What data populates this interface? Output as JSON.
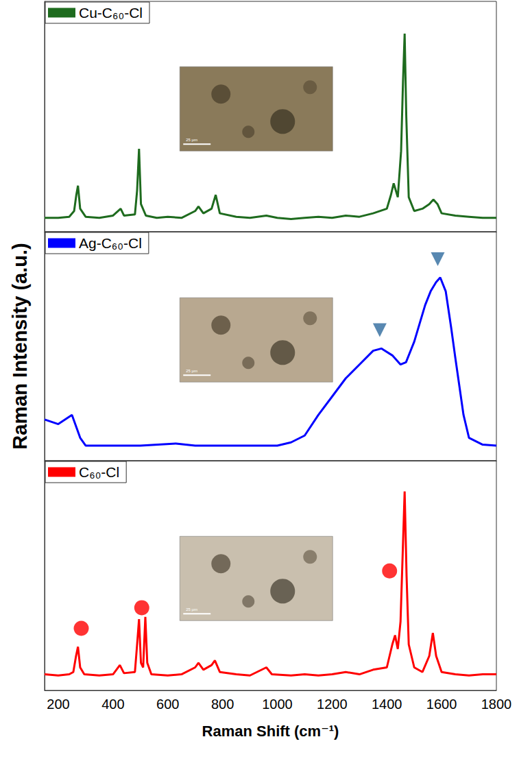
{
  "chart_data": {
    "type": "line",
    "x_label": "Raman Shift (cm⁻¹)",
    "y_label": "Raman Intensity (a.u.)",
    "xlim": [
      150,
      1800
    ],
    "xticks": [
      200,
      400,
      600,
      800,
      1000,
      1200,
      1400,
      1600,
      1800
    ],
    "ylim": [
      0,
      1
    ],
    "tick_labels": "x",
    "grid": false,
    "panels": [
      {
        "name": "Cu-C₆₀-Cl",
        "color": "#1e6b1e",
        "line_style": "solid",
        "x": [
          150,
          200,
          240,
          258,
          266,
          272,
          280,
          300,
          350,
          400,
          428,
          440,
          480,
          488,
          495,
          502,
          520,
          560,
          600,
          650,
          700,
          712,
          730,
          760,
          775,
          790,
          850,
          900,
          960,
          1000,
          1050,
          1100,
          1150,
          1200,
          1250,
          1300,
          1350,
          1400,
          1415,
          1425,
          1440,
          1452,
          1459,
          1465,
          1471,
          1480,
          1500,
          1530,
          1555,
          1570,
          1585,
          1600,
          1650,
          1700,
          1750,
          1800
        ],
        "values": [
          0.06,
          0.06,
          0.065,
          0.09,
          0.16,
          0.2,
          0.1,
          0.065,
          0.06,
          0.07,
          0.1,
          0.07,
          0.075,
          0.18,
          0.36,
          0.12,
          0.07,
          0.06,
          0.065,
          0.06,
          0.09,
          0.11,
          0.08,
          0.1,
          0.16,
          0.08,
          0.065,
          0.06,
          0.07,
          0.06,
          0.055,
          0.06,
          0.065,
          0.06,
          0.07,
          0.065,
          0.08,
          0.1,
          0.16,
          0.21,
          0.15,
          0.35,
          0.65,
          0.86,
          0.5,
          0.15,
          0.09,
          0.1,
          0.12,
          0.14,
          0.12,
          0.08,
          0.07,
          0.065,
          0.06,
          0.06
        ],
        "inset_scale_bar": "25 µm"
      },
      {
        "name": "Ag-C₆₀-Cl",
        "color": "#0000ff",
        "line_style": "solid",
        "x": [
          150,
          200,
          250,
          280,
          300,
          400,
          500,
          630,
          700,
          800,
          900,
          1000,
          1050,
          1100,
          1150,
          1200,
          1250,
          1300,
          1350,
          1380,
          1420,
          1450,
          1470,
          1500,
          1540,
          1560,
          1580,
          1595,
          1615,
          1635,
          1650,
          1680,
          1700,
          1750,
          1800
        ],
        "values": [
          0.18,
          0.16,
          0.2,
          0.1,
          0.066,
          0.066,
          0.066,
          0.075,
          0.066,
          0.066,
          0.066,
          0.066,
          0.08,
          0.11,
          0.2,
          0.28,
          0.36,
          0.42,
          0.48,
          0.49,
          0.46,
          0.42,
          0.43,
          0.52,
          0.68,
          0.74,
          0.78,
          0.8,
          0.74,
          0.58,
          0.45,
          0.2,
          0.1,
          0.07,
          0.066
        ],
        "markers": {
          "marker": "triangle_down",
          "color": "#2e6a9e",
          "x": [
            1374,
            1586
          ],
          "values": [
            0.57,
            0.88
          ]
        },
        "inset_scale_bar": "25 µm"
      },
      {
        "name": "C₆₀-Cl",
        "color": "#ff0000",
        "line_style": "solid",
        "x": [
          150,
          200,
          240,
          255,
          265,
          272,
          280,
          295,
          350,
          400,
          425,
          440,
          480,
          488,
          495,
          502,
          510,
          518,
          525,
          540,
          600,
          650,
          700,
          712,
          730,
          760,
          772,
          790,
          850,
          900,
          960,
          980,
          1050,
          1100,
          1150,
          1200,
          1250,
          1300,
          1350,
          1400,
          1420,
          1430,
          1440,
          1450,
          1458,
          1465,
          1472,
          1480,
          1500,
          1530,
          1555,
          1568,
          1580,
          1600,
          1650,
          1700,
          1750,
          1800
        ],
        "values": [
          0.07,
          0.065,
          0.07,
          0.08,
          0.15,
          0.19,
          0.1,
          0.07,
          0.065,
          0.07,
          0.11,
          0.075,
          0.08,
          0.2,
          0.31,
          0.12,
          0.1,
          0.32,
          0.12,
          0.07,
          0.065,
          0.07,
          0.1,
          0.12,
          0.09,
          0.11,
          0.13,
          0.08,
          0.07,
          0.065,
          0.1,
          0.07,
          0.065,
          0.07,
          0.065,
          0.07,
          0.08,
          0.07,
          0.09,
          0.1,
          0.2,
          0.24,
          0.18,
          0.3,
          0.6,
          0.866,
          0.5,
          0.2,
          0.1,
          0.08,
          0.15,
          0.25,
          0.15,
          0.08,
          0.07,
          0.065,
          0.07,
          0.07
        ],
        "markers": {
          "marker": "circle",
          "color": "#ff0000",
          "x": [
            284,
            505,
            1410
          ],
          "values": [
            0.27,
            0.36,
            0.52
          ]
        },
        "inset_scale_bar": "25 µm"
      }
    ]
  }
}
